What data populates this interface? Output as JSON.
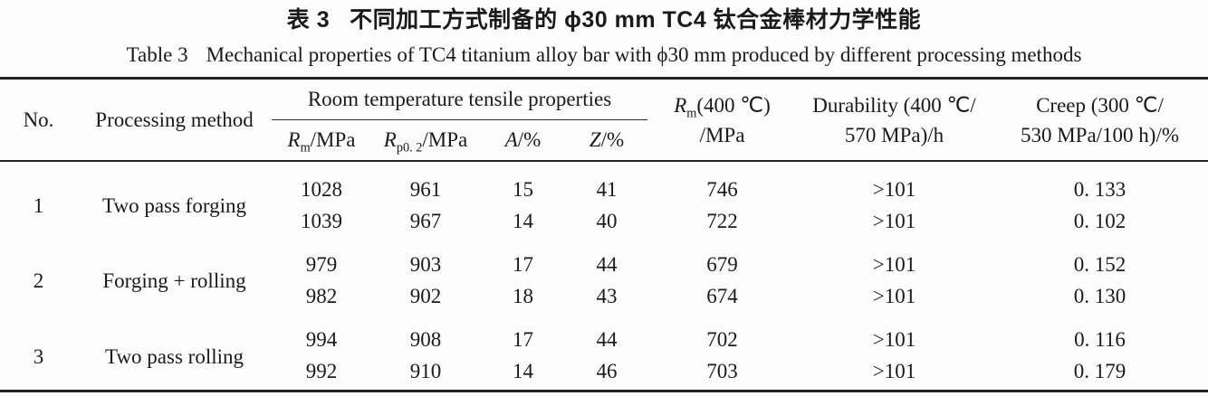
{
  "title": {
    "zh_label": "表 3",
    "zh_text": "不同加工方式制备的 ϕ30 mm TC4 钛合金棒材力学性能",
    "en_label": "Table 3",
    "en_text": "Mechanical properties of TC4 titanium alloy bar with ϕ30 mm produced by different processing methods"
  },
  "table": {
    "header": {
      "no": "No.",
      "method": "Processing method",
      "tensile_group": "Room temperature tensile properties",
      "rm": {
        "symbol": "R",
        "sub": "m",
        "unit": "/MPa"
      },
      "rp02": {
        "symbol": "R",
        "sub": "p0. 2",
        "unit": "/MPa"
      },
      "a": {
        "symbol": "A",
        "unit": "/%"
      },
      "z": {
        "symbol": "Z",
        "unit": "/%"
      },
      "rm400": {
        "symbol": "R",
        "sub": "m",
        "line1_rest": "(400 ℃)",
        "line2": "/MPa"
      },
      "durability": {
        "line1": "Durability (400 ℃/",
        "line2": "570 MPa)/h"
      },
      "creep": {
        "line1": "Creep (300 ℃/",
        "line2": "530 MPa/100 h)/%"
      }
    },
    "groups": [
      {
        "no": "1",
        "method": "Two pass forging",
        "rows": [
          [
            "1028",
            "961",
            "15",
            "41",
            "746",
            ">101",
            "0. 133"
          ],
          [
            "1039",
            "967",
            "14",
            "40",
            "722",
            ">101",
            "0. 102"
          ]
        ]
      },
      {
        "no": "2",
        "method": "Forging + rolling",
        "rows": [
          [
            "979",
            "903",
            "17",
            "44",
            "679",
            ">101",
            "0. 152"
          ],
          [
            "982",
            "902",
            "18",
            "43",
            "674",
            ">101",
            "0. 130"
          ]
        ]
      },
      {
        "no": "3",
        "method": "Two pass rolling",
        "rows": [
          [
            "994",
            "908",
            "17",
            "44",
            "702",
            ">101",
            "0. 116"
          ],
          [
            "992",
            "910",
            "14",
            "46",
            "703",
            ">101",
            "0. 179"
          ]
        ]
      }
    ]
  },
  "colors": {
    "rule": "#222222",
    "text": "#1a1a1a",
    "background": "#fdfdfd"
  }
}
